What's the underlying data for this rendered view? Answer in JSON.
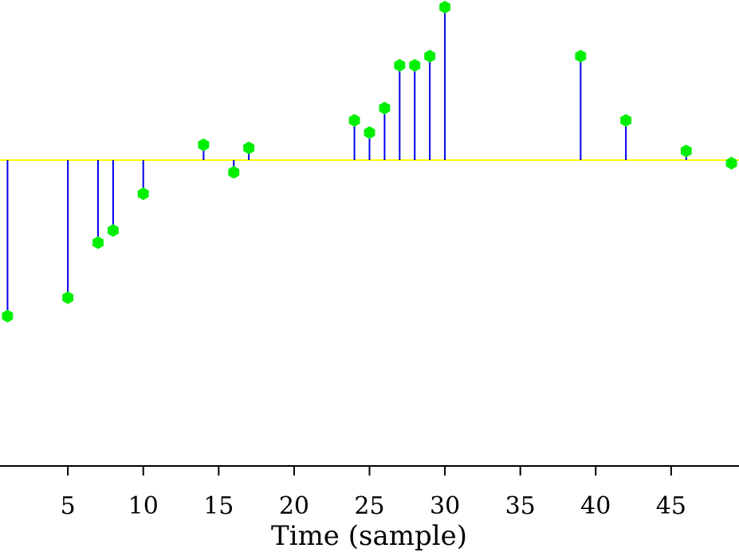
{
  "chart_data": {
    "type": "stem",
    "xlabel": "Time (sample)",
    "xlim": [
      0.5,
      49.5
    ],
    "ylim": [
      -1.0,
      0.5
    ],
    "x_ticks": [
      5,
      10,
      15,
      20,
      25,
      30,
      35,
      40,
      45
    ],
    "grid": false,
    "colors": {
      "stem": "#0000ee",
      "marker": "#00ee00",
      "baseline": "#ffff00",
      "axis": "#000000"
    },
    "series": [
      {
        "x": [
          1,
          5,
          7,
          8,
          10,
          14,
          16,
          17,
          24,
          25,
          26,
          27,
          28,
          29,
          30,
          39,
          42,
          46,
          49
        ],
        "values": [
          -0.51,
          -0.45,
          -0.27,
          -0.23,
          -0.11,
          0.05,
          -0.04,
          0.04,
          0.13,
          0.09,
          0.17,
          0.31,
          0.31,
          0.34,
          0.5,
          0.34,
          0.13,
          0.03,
          -0.01
        ]
      }
    ]
  }
}
